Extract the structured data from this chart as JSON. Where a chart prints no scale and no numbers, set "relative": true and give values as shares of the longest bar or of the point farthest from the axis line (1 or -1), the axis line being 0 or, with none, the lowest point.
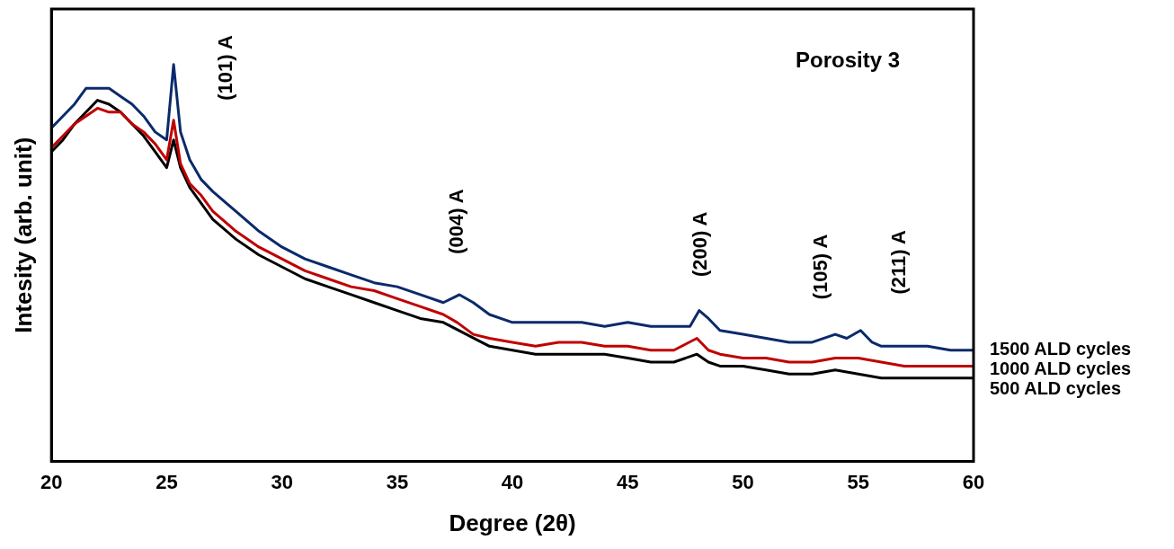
{
  "chart_data": {
    "type": "line",
    "title": "Porosity 3",
    "xlabel": "Degree (2θ)",
    "ylabel": "Intesity (arb. unit)",
    "relative": true,
    "xlim": [
      20,
      60
    ],
    "xticks": [
      20,
      25,
      30,
      35,
      40,
      45,
      50,
      55,
      60
    ],
    "grid": false,
    "legend": false,
    "annotations": [
      "(101) A",
      "(004) A",
      "(200) A",
      "(105) A",
      "(211) A"
    ],
    "series": [
      {
        "name": "1500 ALD cycles",
        "color": "#0b2a6b",
        "x": [
          20,
          20.5,
          21,
          21.5,
          22,
          22.5,
          23,
          23.5,
          24,
          24.5,
          25,
          25.3,
          25.6,
          26,
          26.5,
          27,
          28,
          29,
          30,
          31,
          32,
          33,
          34,
          35,
          36,
          37,
          37.7,
          38.3,
          39,
          40,
          41,
          42,
          43,
          44,
          45,
          46,
          47,
          47.7,
          48.1,
          48.5,
          49,
          50,
          51,
          52,
          53,
          54,
          54.5,
          55.1,
          55.6,
          56,
          57,
          58,
          59,
          60
        ],
        "values": [
          0.84,
          0.87,
          0.9,
          0.94,
          0.94,
          0.94,
          0.92,
          0.9,
          0.87,
          0.83,
          0.81,
          1.0,
          0.83,
          0.76,
          0.71,
          0.68,
          0.63,
          0.58,
          0.54,
          0.51,
          0.49,
          0.47,
          0.45,
          0.44,
          0.42,
          0.4,
          0.42,
          0.4,
          0.37,
          0.35,
          0.35,
          0.35,
          0.35,
          0.34,
          0.35,
          0.34,
          0.34,
          0.34,
          0.38,
          0.36,
          0.33,
          0.32,
          0.31,
          0.3,
          0.3,
          0.32,
          0.31,
          0.33,
          0.3,
          0.29,
          0.29,
          0.29,
          0.28,
          0.28
        ]
      },
      {
        "name": "1000 ALD cycles",
        "color": "#c00000",
        "x": [
          20,
          20.5,
          21,
          21.5,
          22,
          22.5,
          23,
          23.5,
          24,
          24.5,
          25,
          25.3,
          25.6,
          26,
          26.5,
          27,
          28,
          29,
          30,
          31,
          32,
          33,
          34,
          35,
          36,
          37,
          37.6,
          38.3,
          39,
          40,
          41,
          42,
          43,
          44,
          45,
          46,
          47,
          48,
          48.5,
          49,
          50,
          51,
          52,
          53,
          54,
          55,
          56,
          57,
          58,
          59,
          60
        ],
        "values": [
          0.79,
          0.82,
          0.85,
          0.87,
          0.89,
          0.88,
          0.88,
          0.85,
          0.83,
          0.8,
          0.76,
          0.86,
          0.75,
          0.7,
          0.67,
          0.63,
          0.58,
          0.54,
          0.51,
          0.48,
          0.46,
          0.44,
          0.43,
          0.41,
          0.39,
          0.37,
          0.35,
          0.32,
          0.31,
          0.3,
          0.29,
          0.3,
          0.3,
          0.29,
          0.29,
          0.28,
          0.28,
          0.31,
          0.28,
          0.27,
          0.26,
          0.26,
          0.25,
          0.25,
          0.26,
          0.26,
          0.25,
          0.24,
          0.24,
          0.24,
          0.24
        ]
      },
      {
        "name": "500 ALD cycles",
        "color": "#000000",
        "x": [
          20,
          20.5,
          21,
          21.5,
          22,
          22.5,
          23,
          23.5,
          24,
          24.5,
          25,
          25.3,
          25.6,
          26,
          26.5,
          27,
          28,
          29,
          30,
          31,
          32,
          33,
          34,
          35,
          36,
          37,
          38,
          39,
          40,
          41,
          42,
          43,
          44,
          45,
          46,
          47,
          48,
          48.5,
          49,
          50,
          51,
          52,
          53,
          54,
          55,
          56,
          57,
          58,
          59,
          60
        ],
        "values": [
          0.78,
          0.81,
          0.85,
          0.88,
          0.91,
          0.9,
          0.88,
          0.85,
          0.82,
          0.78,
          0.74,
          0.81,
          0.74,
          0.69,
          0.65,
          0.61,
          0.56,
          0.52,
          0.49,
          0.46,
          0.44,
          0.42,
          0.4,
          0.38,
          0.36,
          0.35,
          0.32,
          0.29,
          0.28,
          0.27,
          0.27,
          0.27,
          0.27,
          0.26,
          0.25,
          0.25,
          0.27,
          0.25,
          0.24,
          0.24,
          0.23,
          0.22,
          0.22,
          0.23,
          0.22,
          0.21,
          0.21,
          0.21,
          0.21,
          0.21
        ]
      }
    ]
  }
}
